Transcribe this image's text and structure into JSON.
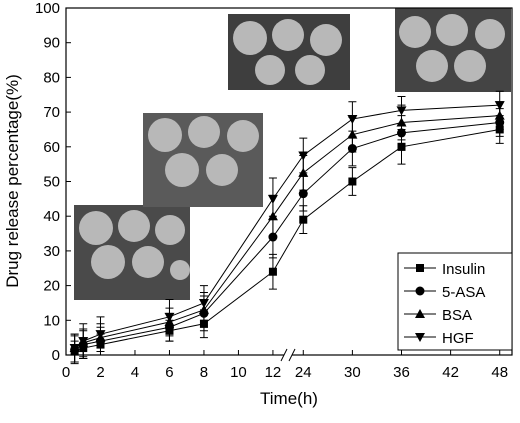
{
  "chart_data": {
    "type": "line",
    "x_label": "Time(h)",
    "y_label": "Drug release percentage(%)",
    "x": [
      0.5,
      1,
      2,
      6,
      8,
      12,
      24,
      30,
      36,
      48
    ],
    "x_segments": [
      {
        "xlim": [
          0,
          12.7
        ],
        "xticks": [
          0,
          2,
          4,
          6,
          8,
          10,
          12
        ]
      },
      {
        "xlim": [
          22.5,
          49.5
        ],
        "xticks": [
          24,
          30,
          36,
          42,
          48
        ]
      }
    ],
    "ylim": [
      0,
      100
    ],
    "yticks": [
      0,
      10,
      20,
      30,
      40,
      50,
      60,
      70,
      80,
      90,
      100
    ],
    "legend_position": "lower right",
    "series": [
      {
        "name": "Insulin",
        "color": "#000000",
        "marker": "square",
        "values": [
          1,
          2,
          3,
          7,
          9,
          24,
          39,
          50,
          60,
          65
        ],
        "errors": [
          3,
          3,
          3,
          3,
          4,
          5,
          4,
          4,
          5,
          4
        ]
      },
      {
        "name": "5-ASA",
        "color": "#000000",
        "marker": "circle",
        "values": [
          1.5,
          3,
          4,
          8,
          12,
          34,
          46.5,
          59.5,
          64,
          67
        ],
        "errors": [
          4,
          4,
          4,
          4,
          5,
          6,
          5,
          5,
          5,
          4
        ]
      },
      {
        "name": "BSA",
        "color": "#000000",
        "marker": "triangle",
        "values": [
          2,
          3.5,
          5,
          9.5,
          13,
          40,
          52.5,
          63.5,
          67,
          69
        ],
        "errors": [
          4,
          4,
          4,
          4,
          5,
          6,
          5,
          5,
          5,
          4
        ]
      },
      {
        "name": "HGF",
        "color": "#000000",
        "marker": "triangle-down",
        "values": [
          2,
          4,
          6,
          11,
          15,
          45,
          57.5,
          68,
          70.5,
          72
        ],
        "errors": [
          4,
          5,
          5,
          5,
          5,
          6,
          5,
          5,
          4,
          4
        ]
      }
    ]
  }
}
